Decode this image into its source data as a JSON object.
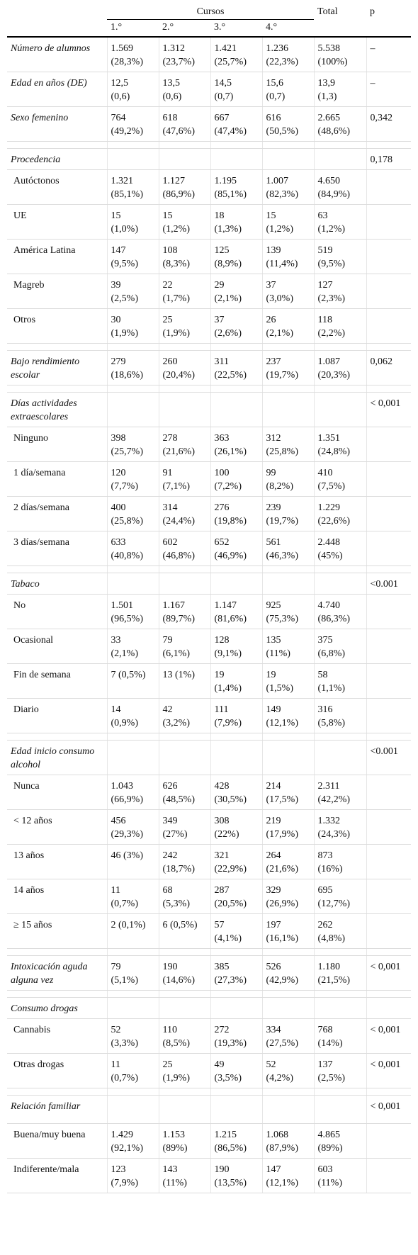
{
  "header": {
    "group_label": "Cursos",
    "total_label": "Total",
    "p_label": "p",
    "courses": [
      "1.°",
      "2.°",
      "3.°",
      "4.°"
    ]
  },
  "rows": [
    {
      "kind": "row",
      "label": "Número de alumnos",
      "italic": true,
      "cells": [
        [
          "1.569",
          "(28,3%)"
        ],
        [
          "1.312",
          "(23,7%)"
        ],
        [
          "1.421",
          "(25,7%)"
        ],
        [
          "1.236",
          "(22,3%)"
        ],
        [
          "5.538",
          "(100%)"
        ]
      ],
      "p": "–"
    },
    {
      "kind": "row",
      "label": "Edad en años (DE)",
      "italic": true,
      "cells": [
        [
          "12,5",
          "(0,6)"
        ],
        [
          "13,5",
          "(0,6)"
        ],
        [
          "14,5",
          "(0,7)"
        ],
        [
          "15,6",
          "(0,7)"
        ],
        [
          "13,9",
          "(1,3)"
        ]
      ],
      "p": "–"
    },
    {
      "kind": "row",
      "label": "Sexo femenino",
      "italic": true,
      "cells": [
        [
          "764",
          "(49,2%)"
        ],
        [
          "618",
          "(47,6%)"
        ],
        [
          "667",
          "(47,4%)"
        ],
        [
          "616",
          "(50,5%)"
        ],
        [
          "2.665",
          "(48,6%)"
        ]
      ],
      "p": "0,342"
    },
    {
      "kind": "gap"
    },
    {
      "kind": "section",
      "label": "Procedencia",
      "p": "0,178"
    },
    {
      "kind": "row",
      "label": "Autóctonos",
      "sub": true,
      "cells": [
        [
          "1.321",
          "(85,1%)"
        ],
        [
          "1.127",
          "(86,9%)"
        ],
        [
          "1.195",
          "(85,1%)"
        ],
        [
          "1.007",
          "(82,3%)"
        ],
        [
          "4.650",
          "(84,9%)"
        ]
      ],
      "p": ""
    },
    {
      "kind": "row",
      "label": "UE",
      "sub": true,
      "cells": [
        [
          "15",
          "(1,0%)"
        ],
        [
          "15",
          "(1,2%)"
        ],
        [
          "18",
          "(1,3%)"
        ],
        [
          "15",
          "(1,2%)"
        ],
        [
          "63",
          "(1,2%)"
        ]
      ],
      "p": ""
    },
    {
      "kind": "row",
      "label": "América Latina",
      "sub": true,
      "cells": [
        [
          "147",
          "(9,5%)"
        ],
        [
          "108",
          "(8,3%)"
        ],
        [
          "125",
          "(8,9%)"
        ],
        [
          "139",
          "(11,4%)"
        ],
        [
          "519",
          "(9,5%)"
        ]
      ],
      "p": ""
    },
    {
      "kind": "row",
      "label": "Magreb",
      "sub": true,
      "cells": [
        [
          "39",
          "(2,5%)"
        ],
        [
          "22",
          "(1,7%)"
        ],
        [
          "29",
          "(2,1%)"
        ],
        [
          "37",
          "(3,0%)"
        ],
        [
          "127",
          "(2,3%)"
        ]
      ],
      "p": ""
    },
    {
      "kind": "row",
      "label": "Otros",
      "sub": true,
      "cells": [
        [
          "30",
          "(1,9%)"
        ],
        [
          "25",
          "(1,9%)"
        ],
        [
          "37",
          "(2,6%)"
        ],
        [
          "26",
          "(2,1%)"
        ],
        [
          "118",
          "(2,2%)"
        ]
      ],
      "p": ""
    },
    {
      "kind": "gap"
    },
    {
      "kind": "row",
      "label": "Bajo rendimiento escolar",
      "italic": true,
      "cells": [
        [
          "279",
          "(18,6%)"
        ],
        [
          "260",
          "(20,4%)"
        ],
        [
          "311",
          "(22,5%)"
        ],
        [
          "237",
          "(19,7%)"
        ],
        [
          "1.087",
          "(20,3%)"
        ]
      ],
      "p": "0,062"
    },
    {
      "kind": "gap"
    },
    {
      "kind": "section",
      "label": "Días actividades extraescolares",
      "p": "< 0,001",
      "tall": true
    },
    {
      "kind": "row",
      "label": "Ninguno",
      "sub": true,
      "cells": [
        [
          "398",
          "(25,7%)"
        ],
        [
          "278",
          "(21,6%)"
        ],
        [
          "363",
          "(26,1%)"
        ],
        [
          "312",
          "(25,8%)"
        ],
        [
          "1.351",
          "(24,8%)"
        ]
      ],
      "p": ""
    },
    {
      "kind": "row",
      "label": "1 día/semana",
      "sub": true,
      "cells": [
        [
          "120",
          "(7,7%)"
        ],
        [
          "91",
          "(7,1%)"
        ],
        [
          "100",
          "(7,2%)"
        ],
        [
          "99",
          "(8,2%)"
        ],
        [
          "410",
          "(7,5%)"
        ]
      ],
      "p": ""
    },
    {
      "kind": "row",
      "label": "2 días/semana",
      "sub": true,
      "cells": [
        [
          "400",
          "(25,8%)"
        ],
        [
          "314",
          "(24,4%)"
        ],
        [
          "276",
          "(19,8%)"
        ],
        [
          "239",
          "(19,7%)"
        ],
        [
          "1.229",
          "(22,6%)"
        ]
      ],
      "p": ""
    },
    {
      "kind": "row",
      "label": "3 días/semana",
      "sub": true,
      "cells": [
        [
          "633",
          "(40,8%)"
        ],
        [
          "602",
          "(46,8%)"
        ],
        [
          "652",
          "(46,9%)"
        ],
        [
          "561",
          "(46,3%)"
        ],
        [
          "2.448",
          "(45%)"
        ]
      ],
      "p": ""
    },
    {
      "kind": "gap"
    },
    {
      "kind": "section",
      "label": "Tabaco",
      "p": "<0.001"
    },
    {
      "kind": "row",
      "label": "No",
      "sub": true,
      "cells": [
        [
          "1.501",
          "(96,5%)"
        ],
        [
          "1.167",
          "(89,7%)"
        ],
        [
          "1.147",
          "(81,6%)"
        ],
        [
          "925",
          "(75,3%)"
        ],
        [
          "4.740",
          "(86,3%)"
        ]
      ],
      "p": ""
    },
    {
      "kind": "row",
      "label": "Ocasional",
      "sub": true,
      "cells": [
        [
          "33",
          "(2,1%)"
        ],
        [
          "79",
          "(6,1%)"
        ],
        [
          "128",
          "(9,1%)"
        ],
        [
          "135",
          "(11%)"
        ],
        [
          "375",
          "(6,8%)"
        ]
      ],
      "p": ""
    },
    {
      "kind": "row",
      "label": "Fin de semana",
      "sub": true,
      "cells": [
        [
          "7 (0,5%)",
          ""
        ],
        [
          "13 (1%)",
          ""
        ],
        [
          "19",
          "(1,4%)"
        ],
        [
          "19",
          "(1,5%)"
        ],
        [
          "58",
          "(1,1%)"
        ]
      ],
      "p": ""
    },
    {
      "kind": "row",
      "label": "Diario",
      "sub": true,
      "cells": [
        [
          "14",
          "(0,9%)"
        ],
        [
          "42",
          "(3,2%)"
        ],
        [
          "111",
          "(7,9%)"
        ],
        [
          "149",
          "(12,1%)"
        ],
        [
          "316",
          "(5,8%)"
        ]
      ],
      "p": ""
    },
    {
      "kind": "gap"
    },
    {
      "kind": "section",
      "label": "Edad inicio consumo alcohol",
      "p": "<0.001",
      "tall": true
    },
    {
      "kind": "row",
      "label": "Nunca",
      "sub": true,
      "cells": [
        [
          "1.043",
          "(66,9%)"
        ],
        [
          "626",
          "(48,5%)"
        ],
        [
          "428",
          "(30,5%)"
        ],
        [
          "214",
          "(17,5%)"
        ],
        [
          "2.311",
          "(42,2%)"
        ]
      ],
      "p": ""
    },
    {
      "kind": "row",
      "label": "< 12 años",
      "sub": true,
      "cells": [
        [
          "456",
          "(29,3%)"
        ],
        [
          "349",
          "(27%)"
        ],
        [
          "308",
          "(22%)"
        ],
        [
          "219",
          "(17,9%)"
        ],
        [
          "1.332",
          "(24,3%)"
        ]
      ],
      "p": ""
    },
    {
      "kind": "row",
      "label": "13 años",
      "sub": true,
      "cells": [
        [
          "46 (3%)",
          ""
        ],
        [
          "242",
          "(18,7%)"
        ],
        [
          "321",
          "(22,9%)"
        ],
        [
          "264",
          "(21,6%)"
        ],
        [
          "873",
          "(16%)"
        ]
      ],
      "p": ""
    },
    {
      "kind": "row",
      "label": "14 años",
      "sub": true,
      "cells": [
        [
          "11",
          "(0,7%)"
        ],
        [
          "68",
          "(5,3%)"
        ],
        [
          "287",
          "(20,5%)"
        ],
        [
          "329",
          "(26,9%)"
        ],
        [
          "695",
          "(12,7%)"
        ]
      ],
      "p": ""
    },
    {
      "kind": "row",
      "label": "≥ 15 años",
      "sub": true,
      "cells": [
        [
          "2 (0,1%)",
          ""
        ],
        [
          "6 (0,5%)",
          ""
        ],
        [
          "57",
          "(4,1%)"
        ],
        [
          "197",
          "(16,1%)"
        ],
        [
          "262",
          "(4,8%)"
        ]
      ],
      "p": ""
    },
    {
      "kind": "gap"
    },
    {
      "kind": "row",
      "label": "Intoxicación aguda alguna vez",
      "italic": true,
      "cells": [
        [
          "79",
          "(5,1%)"
        ],
        [
          "190",
          "(14,6%)"
        ],
        [
          "385",
          "(27,3%)"
        ],
        [
          "526",
          "(42,9%)"
        ],
        [
          "1.180",
          "(21,5%)"
        ]
      ],
      "p": "< 0,001"
    },
    {
      "kind": "gap"
    },
    {
      "kind": "section",
      "label": "Consumo drogas",
      "p": ""
    },
    {
      "kind": "row",
      "label": "Cannabis",
      "sub": true,
      "cells": [
        [
          "52",
          "(3,3%)"
        ],
        [
          "110",
          "(8,5%)"
        ],
        [
          "272",
          "(19,3%)"
        ],
        [
          "334",
          "(27,5%)"
        ],
        [
          "768",
          "(14%)"
        ]
      ],
      "p": "< 0,001"
    },
    {
      "kind": "row",
      "label": "Otras drogas",
      "sub": true,
      "cells": [
        [
          "11",
          "(0,7%)"
        ],
        [
          "25",
          "(1,9%)"
        ],
        [
          "49",
          "(3,5%)"
        ],
        [
          "52",
          "(4,2%)"
        ],
        [
          "137",
          "(2,5%)"
        ]
      ],
      "p": "< 0,001"
    },
    {
      "kind": "gap"
    },
    {
      "kind": "section",
      "label": "Relación familiar",
      "p": "< 0,001",
      "tall": true
    },
    {
      "kind": "row",
      "label": "Buena/muy buena",
      "sub": true,
      "cells": [
        [
          "1.429",
          "(92,1%)"
        ],
        [
          "1.153",
          "(89%)"
        ],
        [
          "1.215",
          "(86,5%)"
        ],
        [
          "1.068",
          "(87,9%)"
        ],
        [
          "4.865",
          "(89%)"
        ]
      ],
      "p": ""
    },
    {
      "kind": "row",
      "label": "Indiferente/mala",
      "sub": true,
      "cells": [
        [
          "123",
          "(7,9%)"
        ],
        [
          "143",
          "(11%)"
        ],
        [
          "190",
          "(13,5%)"
        ],
        [
          "147",
          "(12,1%)"
        ],
        [
          "603",
          "(11%)"
        ]
      ],
      "p": ""
    }
  ]
}
